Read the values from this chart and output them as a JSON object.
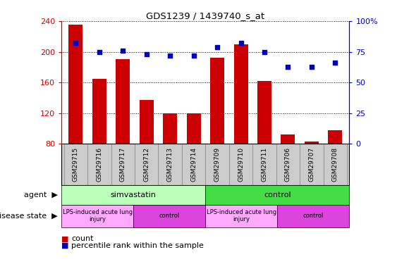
{
  "title": "GDS1239 / 1439740_s_at",
  "samples": [
    "GSM29715",
    "GSM29716",
    "GSM29717",
    "GSM29712",
    "GSM29713",
    "GSM29714",
    "GSM29709",
    "GSM29710",
    "GSM29711",
    "GSM29706",
    "GSM29707",
    "GSM29708"
  ],
  "counts": [
    235,
    165,
    190,
    137,
    120,
    120,
    192,
    210,
    162,
    92,
    83,
    98
  ],
  "percentiles": [
    82,
    75,
    76,
    73,
    72,
    72,
    79,
    82,
    75,
    63,
    63,
    66
  ],
  "ylim_left": [
    80,
    240
  ],
  "ylim_right": [
    0,
    100
  ],
  "yticks_left": [
    80,
    120,
    160,
    200,
    240
  ],
  "yticks_right": [
    0,
    25,
    50,
    75,
    100
  ],
  "bar_color": "#cc0000",
  "scatter_color": "#0000bb",
  "agent_groups": [
    {
      "label": "simvastatin",
      "start": 0,
      "end": 6,
      "color": "#bbffbb"
    },
    {
      "label": "control",
      "start": 6,
      "end": 12,
      "color": "#44dd44"
    }
  ],
  "disease_groups": [
    {
      "label": "LPS-induced acute lung\ninjury",
      "start": 0,
      "end": 3,
      "color": "#ffaaff"
    },
    {
      "label": "control",
      "start": 3,
      "end": 6,
      "color": "#dd44dd"
    },
    {
      "label": "LPS-induced acute lung\ninjury",
      "start": 6,
      "end": 9,
      "color": "#ffaaff"
    },
    {
      "label": "control",
      "start": 9,
      "end": 12,
      "color": "#dd44dd"
    }
  ],
  "legend_count_color": "#cc0000",
  "legend_pct_color": "#0000bb",
  "left_axis_color": "#cc0000",
  "right_axis_color": "#0000bb",
  "xticklabel_bg": "#cccccc",
  "sample_box_edgecolor": "#888888"
}
